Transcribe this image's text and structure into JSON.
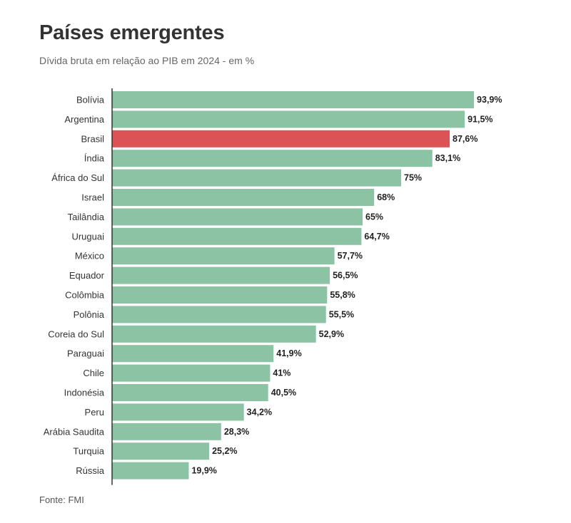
{
  "chart_data": {
    "type": "bar",
    "orientation": "horizontal",
    "title": "Países emergentes",
    "subtitle": "Dívida bruta em relação ao PIB em 2024 - em %",
    "source": "Fonte: FMI",
    "categories": [
      "Bolívia",
      "Argentina",
      "Brasil",
      "Índia",
      "África do Sul",
      "Israel",
      "Tailândia",
      "Uruguai",
      "México",
      "Equador",
      "Colômbia",
      "Polônia",
      "Coreia do Sul",
      "Paraguai",
      "Chile",
      "Indonésia",
      "Peru",
      "Arábia Saudita",
      "Turquia",
      "Rússia"
    ],
    "values": [
      93.9,
      91.5,
      87.6,
      83.1,
      75,
      68,
      65,
      64.7,
      57.7,
      56.5,
      55.8,
      55.5,
      52.9,
      41.9,
      41,
      40.5,
      34.2,
      28.3,
      25.2,
      19.9
    ],
    "value_labels": [
      "93,9%",
      "91,5%",
      "87,6%",
      "83,1%",
      "75%",
      "68%",
      "65%",
      "64,7%",
      "57,7%",
      "56,5%",
      "55,8%",
      "55,5%",
      "52,9%",
      "41,9%",
      "41%",
      "40,5%",
      "34,2%",
      "28,3%",
      "25,2%",
      "19,9%"
    ],
    "highlight_category": "Brasil",
    "colors": {
      "bar": "#8cc3a5",
      "highlight": "#dc5356",
      "axis": "#333333"
    },
    "xlim": [
      0,
      100
    ],
    "grid": false,
    "legend": "none"
  }
}
